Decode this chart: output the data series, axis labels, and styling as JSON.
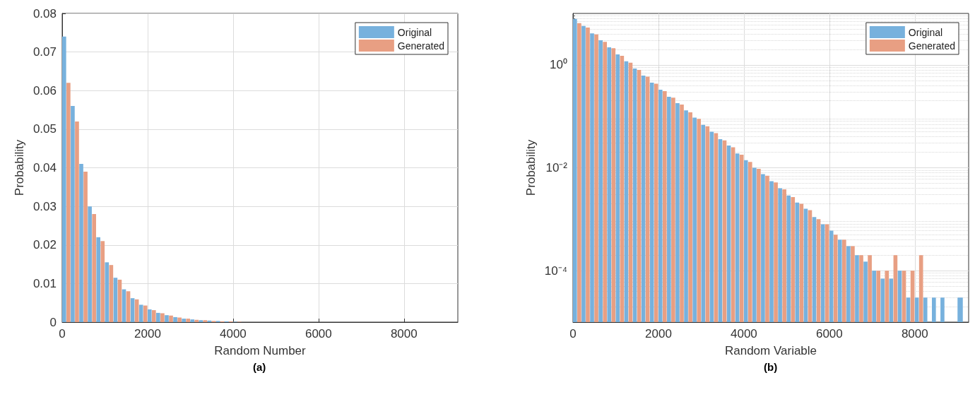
{
  "chart_data": [
    {
      "type": "histogram",
      "xlabel": "Random Number",
      "ylabel": "Probability",
      "annotations": [
        "(a)"
      ],
      "bins": [
        0,
        200,
        400,
        600,
        800,
        1000,
        1200,
        1400,
        1600,
        1800,
        2000,
        2200,
        2400,
        2600,
        2800,
        3000,
        3200,
        3400,
        3600,
        3800,
        4000,
        4200
      ],
      "series": [
        {
          "name": "Original",
          "color": "#77b1dd",
          "values": [
            0.074,
            0.056,
            0.041,
            0.03,
            0.022,
            0.0155,
            0.0115,
            0.0085,
            0.0062,
            0.0045,
            0.0033,
            0.0024,
            0.0018,
            0.0013,
            0.0009,
            0.0007,
            0.0005,
            0.0004,
            0.0003,
            0.0002,
            0.0001
          ]
        },
        {
          "name": "Generated",
          "color": "#e89f83",
          "values": [
            0.062,
            0.052,
            0.039,
            0.028,
            0.021,
            0.0148,
            0.011,
            0.008,
            0.0059,
            0.0043,
            0.0031,
            0.0023,
            0.0017,
            0.0012,
            0.0009,
            0.0006,
            0.0005,
            0.0003,
            0.0002,
            0.0002,
            0.0001
          ]
        }
      ],
      "xlim": [
        0,
        9260
      ],
      "xticks": [
        0,
        2000,
        4000,
        6000,
        8000
      ],
      "ylim": [
        0,
        0.08
      ],
      "yticks": [
        0,
        0.01,
        0.02,
        0.03,
        0.04,
        0.05,
        0.06,
        0.07,
        0.08
      ],
      "grid": true,
      "legend": "top right"
    },
    {
      "type": "histogram",
      "xlabel": "Random Variable",
      "ylabel": "Probability",
      "annotations": [
        "(b)"
      ],
      "bins": [
        0,
        200,
        400,
        600,
        800,
        1000,
        1200,
        1400,
        1600,
        1800,
        2000,
        2200,
        2400,
        2600,
        2800,
        3000,
        3200,
        3400,
        3600,
        3800,
        4000,
        4200,
        4400,
        4600,
        4800,
        5000,
        5200,
        5400,
        5600,
        5800,
        6000,
        6200,
        6400,
        6600,
        6800,
        7000,
        7200,
        7400,
        7600,
        7800,
        8000,
        8200,
        8400,
        8600,
        8800,
        9000,
        9260
      ],
      "series": [
        {
          "name": "Original",
          "color": "#77b1dd",
          "values": [
            7.8,
            5.7,
            4.1,
            3.0,
            2.2,
            1.6,
            1.17,
            0.85,
            0.62,
            0.45,
            0.33,
            0.24,
            0.18,
            0.13,
            0.094,
            0.068,
            0.05,
            0.036,
            0.027,
            0.019,
            0.014,
            0.01,
            0.0075,
            0.0055,
            0.004,
            0.0029,
            0.0021,
            0.0016,
            0.0011,
            0.0008,
            0.0006,
            0.0004,
            0.0003,
            0.0002,
            0.00015,
            0.0001,
            7e-05,
            7e-05,
            0.0001,
            3e-05,
            3e-05,
            3e-05,
            3e-05,
            3e-05,
            null,
            3e-05
          ]
        },
        {
          "name": "Generated",
          "color": "#e89f83",
          "values": [
            6.5,
            5.3,
            3.9,
            2.8,
            2.1,
            1.5,
            1.1,
            0.8,
            0.59,
            0.43,
            0.31,
            0.23,
            0.17,
            0.12,
            0.089,
            0.064,
            0.047,
            0.034,
            0.025,
            0.018,
            0.013,
            0.0095,
            0.007,
            0.0052,
            0.0038,
            0.0027,
            0.002,
            0.0015,
            0.001,
            0.0008,
            0.0005,
            0.0004,
            0.0003,
            0.0002,
            0.0002,
            0.0001,
            0.0001,
            0.0002,
            0.0001,
            0.0001,
            0.0002,
            null,
            null,
            null,
            null,
            null
          ]
        }
      ],
      "xlim": [
        0,
        9260
      ],
      "xticks": [
        0,
        2000,
        4000,
        6000,
        8000
      ],
      "ylim": [
        1e-05,
        10
      ],
      "yticks": [
        {
          "value": 0.0001,
          "label": "10⁻⁴"
        },
        {
          "value": 0.01,
          "label": "10⁻²"
        },
        {
          "value": 1,
          "label": "10⁰"
        }
      ],
      "log": "y",
      "grid": true,
      "legend": "top right"
    }
  ]
}
